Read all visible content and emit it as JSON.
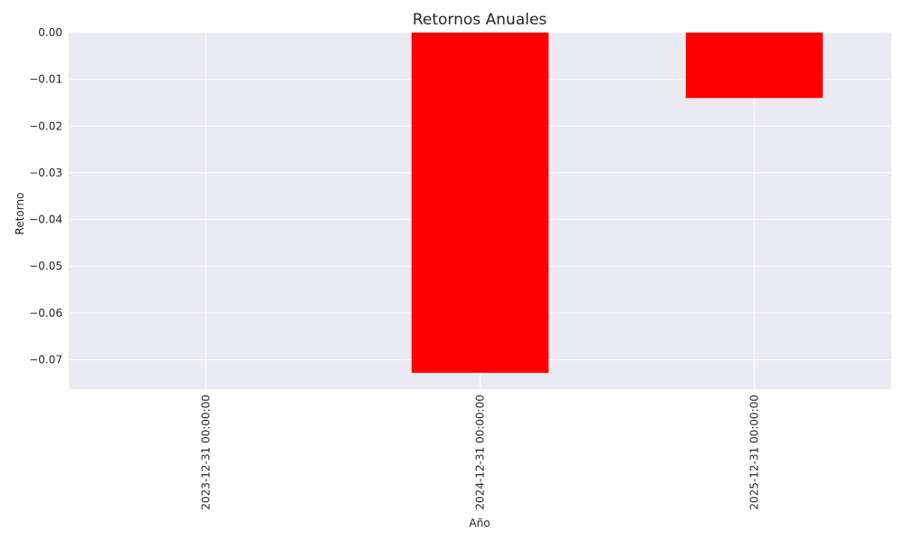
{
  "chart_data": {
    "type": "bar",
    "title": "Retornos Anuales",
    "xlabel": "Año",
    "ylabel": "Retorno",
    "categories": [
      "2023-12-31 00:00:00",
      "2024-12-31 00:00:00",
      "2025-12-31 00:00:00"
    ],
    "values": [
      0.0,
      -0.0728,
      -0.014
    ],
    "ylim": [
      -0.0763,
      0.0
    ],
    "yticks": [
      0.0,
      -0.01,
      -0.02,
      -0.03,
      -0.04,
      -0.05,
      -0.06,
      -0.07
    ],
    "ytick_labels": [
      "0.00",
      "−0.01",
      "−0.02",
      "−0.03",
      "−0.04",
      "−0.05",
      "−0.06",
      "−0.07"
    ],
    "grid": true,
    "legend": "none",
    "colors": {
      "bar": "#ff0000",
      "plot_background": "#eaeaf2",
      "grid": "#ffffff",
      "text": "#262626"
    }
  }
}
